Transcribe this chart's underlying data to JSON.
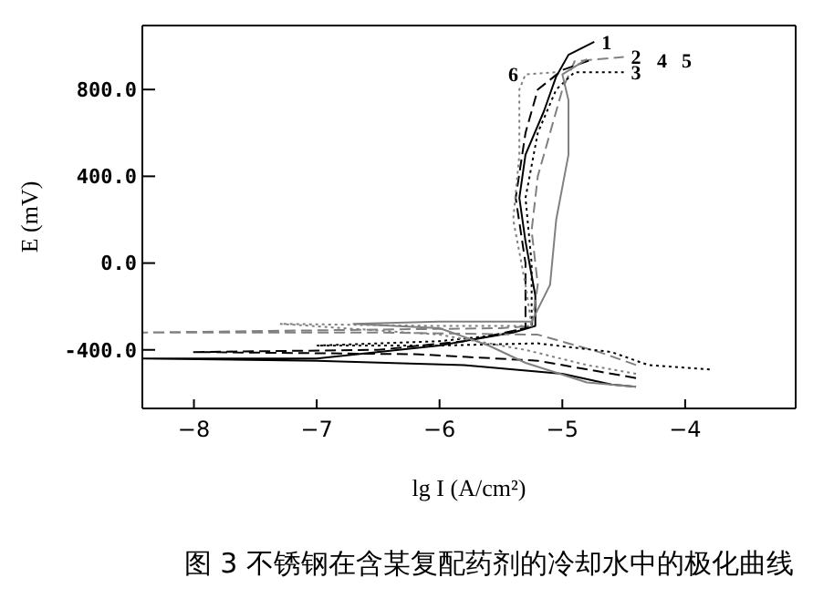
{
  "chart_data": {
    "type": "line",
    "xlabel": "lg I (A/cm²)",
    "ylabel": "E (mV)",
    "xlim": [
      -8.42,
      -3.1
    ],
    "xticks": [
      -8,
      -7,
      -6,
      -5,
      -4
    ],
    "ylim": [
      -670,
      1095
    ],
    "yticks": [
      {
        "value": -400,
        "label": "-400.0"
      },
      {
        "value": 0,
        "label": "0.0"
      },
      {
        "value": 400,
        "label": "400.0"
      },
      {
        "value": 800,
        "label": "800.0"
      }
    ],
    "grid": false,
    "legend": false,
    "marker": "none",
    "series": [
      {
        "color": "#000000",
        "line_style": "solid",
        "x": [
          -4.4,
          -4.6,
          -5.0,
          -5.8,
          -7.0,
          -8.42,
          -7.0,
          -6.0,
          -5.4,
          -5.22,
          -5.22,
          -5.3,
          -5.35,
          -5.3,
          -5.15,
          -5.05,
          -4.95,
          -4.74
        ],
        "values": [
          -570,
          -560,
          -510,
          -470,
          -450,
          -440,
          -440,
          -380,
          -320,
          -290,
          -150,
          100,
          300,
          500,
          700,
          860,
          960,
          1020
        ]
      },
      {
        "color": "#808080",
        "line_style": "dashed",
        "x": [
          -4.4,
          -4.7,
          -5.2,
          -6.5,
          -8.42,
          -7.0,
          -5.5,
          -5.25,
          -5.2,
          -5.25,
          -5.2,
          -5.1,
          -5.0,
          -4.9,
          -4.5
        ],
        "values": [
          -470,
          -410,
          -330,
          -320,
          -320,
          -310,
          -300,
          -290,
          -100,
          150,
          400,
          600,
          800,
          930,
          950
        ]
      },
      {
        "color": "#000000",
        "line_style": "dotted",
        "x": [
          -3.8,
          -4.3,
          -4.6,
          -5.2,
          -6.0,
          -7.0,
          -6.0,
          -5.5,
          -5.25,
          -5.25,
          -5.3,
          -5.2,
          -5.05,
          -4.9,
          -4.5
        ],
        "values": [
          -490,
          -470,
          -410,
          -370,
          -380,
          -380,
          -360,
          -330,
          -290,
          0,
          300,
          600,
          800,
          880,
          880
        ]
      },
      {
        "color": "#000000",
        "line_style": "dashed",
        "x": [
          -4.4,
          -4.7,
          -5.2,
          -6.2,
          -8.0,
          -6.5,
          -5.8,
          -5.3,
          -5.3,
          -5.38,
          -5.3,
          -5.2,
          -5.0,
          -4.75
        ],
        "values": [
          -530,
          -500,
          -450,
          -420,
          -410,
          -400,
          -360,
          -300,
          0,
          300,
          600,
          800,
          890,
          940
        ]
      },
      {
        "color": "#808080",
        "line_style": "solid",
        "x": [
          -4.4,
          -4.8,
          -5.3,
          -5.6,
          -6.0,
          -6.7,
          -6.0,
          -5.25,
          -5.1,
          -5.05,
          -4.95,
          -4.95,
          -5.0,
          -4.8
        ],
        "values": [
          -570,
          -550,
          -460,
          -380,
          -300,
          -280,
          -270,
          -270,
          -100,
          200,
          500,
          750,
          870,
          940
        ]
      },
      {
        "color": "#808080",
        "line_style": "dotted",
        "x": [
          -4.4,
          -4.8,
          -5.3,
          -6.0,
          -7.3,
          -6.0,
          -5.25,
          -5.3,
          -5.4,
          -5.35,
          -5.35,
          -5.3,
          -5.05
        ],
        "values": [
          -510,
          -470,
          -400,
          -330,
          -280,
          -290,
          -290,
          -100,
          200,
          500,
          800,
          870,
          880
        ]
      }
    ],
    "annotations": [
      {
        "text": "1",
        "x": -4.74,
        "y": 1020
      },
      {
        "text": "2",
        "x": -4.5,
        "y": 950
      },
      "4",
      "5",
      {
        "text": "3",
        "x": -4.5,
        "y": 880
      },
      {
        "text": "6",
        "x": -5.3,
        "y": 870
      },
      "图 3 不锈钢在含某复配药剂的冷却水中的极化曲线"
    ]
  }
}
